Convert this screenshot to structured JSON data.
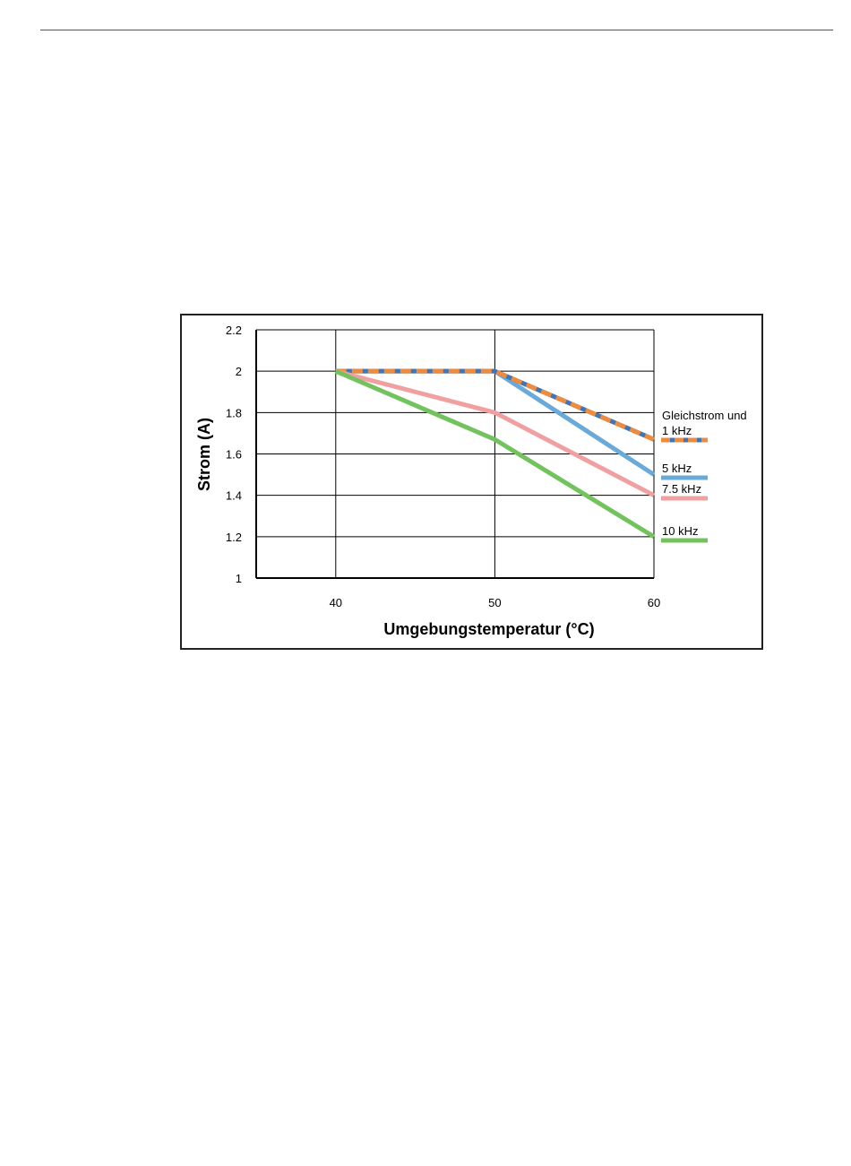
{
  "page": {
    "background": "#ffffff",
    "rule_color": "#555555"
  },
  "chart_data": {
    "type": "line",
    "title": "",
    "xlabel": "Umgebungstemperatur (°C)",
    "ylabel": "Strom (A)",
    "xlim": [
      35,
      60
    ],
    "ylim": [
      1,
      2.2
    ],
    "x_ticks": [
      40,
      50,
      60
    ],
    "y_ticks": [
      1,
      1.2,
      1.4,
      1.6,
      1.8,
      2,
      2.2
    ],
    "x_tick_labels": [
      "40",
      "50",
      "60"
    ],
    "y_tick_labels": [
      "1",
      "1.2",
      "1.4",
      "1.6",
      "1.8",
      "2",
      "2.2"
    ],
    "grid": true,
    "legend_position": "right",
    "series": [
      {
        "key": "s5",
        "legend_lines": [
          "5 kHz"
        ],
        "color": "#6aaad9",
        "dashed": false,
        "x": [
          40,
          50,
          60
        ],
        "y": [
          2,
          2,
          1.5
        ]
      },
      {
        "key": "s1",
        "legend_lines": [
          "Gleichstrom und",
          "1 kHz"
        ],
        "color": "#f08a3c",
        "dashed": true,
        "x": [
          40,
          50,
          60
        ],
        "y": [
          2,
          2,
          1.67
        ]
      },
      {
        "key": "s75",
        "legend_lines": [
          "7.5 kHz"
        ],
        "color": "#f0a0a0",
        "dashed": false,
        "x": [
          40,
          50,
          60
        ],
        "y": [
          2,
          1.8,
          1.4
        ]
      },
      {
        "key": "s10",
        "legend_lines": [
          "10 kHz"
        ],
        "color": "#72c35e",
        "dashed": false,
        "x": [
          40,
          50,
          60
        ],
        "y": [
          2,
          1.67,
          1.2
        ]
      }
    ]
  }
}
